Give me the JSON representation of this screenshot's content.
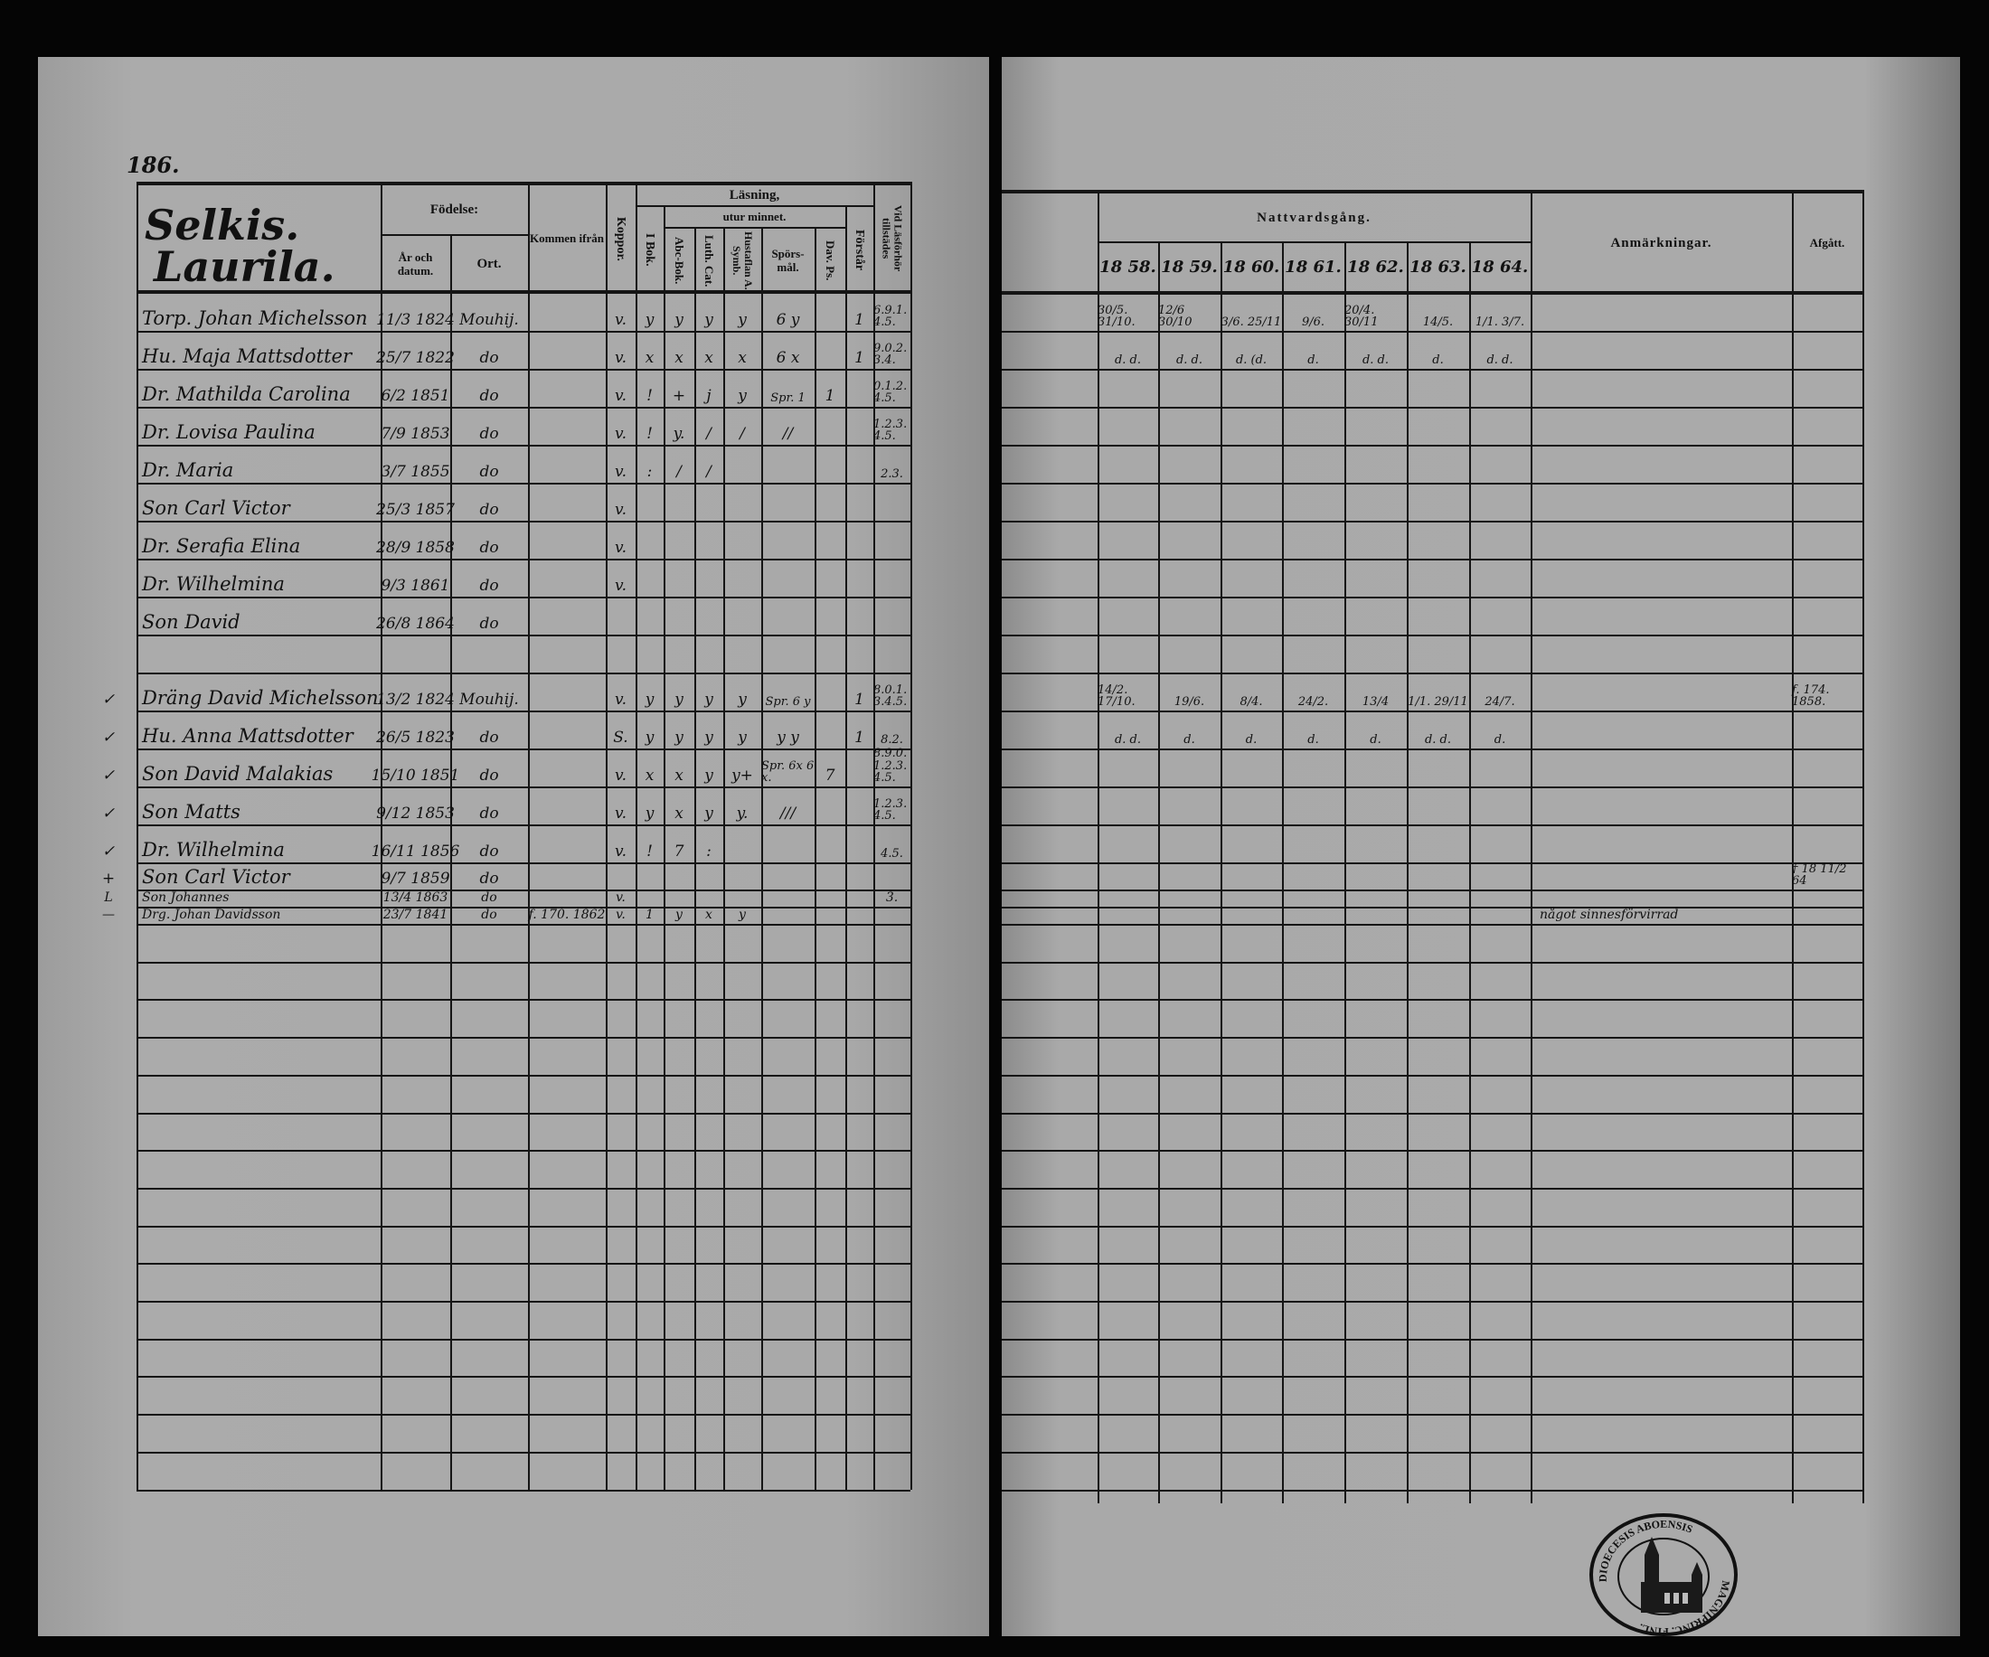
{
  "left_page": {
    "page_number": "186.",
    "farm_name_line1": "Selkis.",
    "farm_name_line2": "Laurila.",
    "headers": {
      "fodelse": "Födelse:",
      "ar_och_datum": "År och datum.",
      "ort": "Ort.",
      "kommen_ifran": "Kommen ifrån",
      "koppor": "Koppor.",
      "lasning": "Läsning,",
      "utur_minnet": "utur minnet.",
      "i_bok": "I Bok.",
      "abc_bok": "Abc-Bok.",
      "luth_cat": "Luth. Cat.",
      "hustaflan": "Hustaflan A. Symb.",
      "sporsmal": "Spörs- mål.",
      "dav_ps": "Dav. Ps.",
      "forstar": "Förstår",
      "vid_lasforhor": "Vid Läsförhör tillstädes"
    },
    "rows": [
      {
        "margin": "",
        "name": "Torp. Johan Michelsson",
        "birth_date": "11/3 1824",
        "birth_place": "Mouhij.",
        "from": "",
        "koppor": "v.",
        "i_bok": "y",
        "abc_bok": "y",
        "luth_cat": "y",
        "hustaflan": "y",
        "sporsmal": "6 y",
        "dav_ps": "",
        "forstar": "1",
        "lasforhor": "6.9.1. 4.5."
      },
      {
        "margin": "",
        "name": "Hu. Maja Mattsdotter",
        "birth_date": "25/7 1822",
        "birth_place": "do",
        "from": "",
        "koppor": "v.",
        "i_bok": "x",
        "abc_bok": "x",
        "luth_cat": "x",
        "hustaflan": "x",
        "sporsmal": "6 x",
        "dav_ps": "",
        "forstar": "1",
        "lasforhor": "9.0.2. 3.4."
      },
      {
        "margin": "",
        "name": "Dr. Mathilda Carolina",
        "birth_date": "6/2 1851",
        "birth_place": "do",
        "from": "",
        "koppor": "v.",
        "i_bok": "!",
        "abc_bok": "+",
        "luth_cat": "j",
        "hustaflan": "y",
        "sporsmal": "Spr. 1",
        "dav_ps": "1",
        "forstar": "",
        "lasforhor": "0.1.2. 4.5."
      },
      {
        "margin": "",
        "name": "Dr. Lovisa Paulina",
        "birth_date": "7/9 1853",
        "birth_place": "do",
        "from": "",
        "koppor": "v.",
        "i_bok": "!",
        "abc_bok": "y.",
        "luth_cat": "/",
        "hustaflan": "/",
        "sporsmal": "//",
        "dav_ps": "",
        "forstar": "",
        "lasforhor": "1.2.3. 4.5."
      },
      {
        "margin": "",
        "name": "Dr. Maria",
        "birth_date": "3/7 1855",
        "birth_place": "do",
        "from": "",
        "koppor": "v.",
        "i_bok": ":",
        "abc_bok": "/",
        "luth_cat": "/",
        "hustaflan": "",
        "sporsmal": "",
        "dav_ps": "",
        "forstar": "",
        "lasforhor": "2.3."
      },
      {
        "margin": "",
        "name": "Son Carl Victor",
        "birth_date": "25/3 1857",
        "birth_place": "do",
        "from": "",
        "koppor": "v.",
        "i_bok": "",
        "abc_bok": "",
        "luth_cat": "",
        "hustaflan": "",
        "sporsmal": "",
        "dav_ps": "",
        "forstar": "",
        "lasforhor": ""
      },
      {
        "margin": "",
        "name": "Dr. Serafia Elina",
        "birth_date": "28/9 1858",
        "birth_place": "do",
        "from": "",
        "koppor": "v.",
        "i_bok": "",
        "abc_bok": "",
        "luth_cat": "",
        "hustaflan": "",
        "sporsmal": "",
        "dav_ps": "",
        "forstar": "",
        "lasforhor": ""
      },
      {
        "margin": "",
        "name": "Dr. Wilhelmina",
        "birth_date": "9/3 1861",
        "birth_place": "do",
        "from": "",
        "koppor": "v.",
        "i_bok": "",
        "abc_bok": "",
        "luth_cat": "",
        "hustaflan": "",
        "sporsmal": "",
        "dav_ps": "",
        "forstar": "",
        "lasforhor": ""
      },
      {
        "margin": "",
        "name": "Son David",
        "birth_date": "26/8 1864",
        "birth_place": "do",
        "from": "",
        "koppor": "",
        "i_bok": "",
        "abc_bok": "",
        "luth_cat": "",
        "hustaflan": "",
        "sporsmal": "",
        "dav_ps": "",
        "forstar": "",
        "lasforhor": ""
      },
      {
        "margin": "",
        "name": "",
        "birth_date": "",
        "birth_place": "",
        "from": "",
        "koppor": "",
        "i_bok": "",
        "abc_bok": "",
        "luth_cat": "",
        "hustaflan": "",
        "sporsmal": "",
        "dav_ps": "",
        "forstar": "",
        "lasforhor": ""
      },
      {
        "margin": "✓",
        "name": "Dräng David Michelsson",
        "birth_date": "13/2 1824",
        "birth_place": "Mouhij.",
        "from": "",
        "koppor": "v.",
        "i_bok": "y",
        "abc_bok": "y",
        "luth_cat": "y",
        "hustaflan": "y",
        "sporsmal": "Spr. 6 y",
        "dav_ps": "",
        "forstar": "1",
        "lasforhor": "8.0.1. 3.4.5."
      },
      {
        "margin": "✓",
        "name": "Hu. Anna Mattsdotter",
        "birth_date": "26/5 1823",
        "birth_place": "do",
        "from": "",
        "koppor": "S.",
        "i_bok": "y",
        "abc_bok": "y",
        "luth_cat": "y",
        "hustaflan": "y",
        "sporsmal": "y y",
        "dav_ps": "",
        "forstar": "1",
        "lasforhor": "8.2."
      },
      {
        "margin": "✓",
        "name": "Son David Malakias",
        "birth_date": "15/10 1851",
        "birth_place": "do",
        "from": "",
        "koppor": "v.",
        "i_bok": "x",
        "abc_bok": "x",
        "luth_cat": "y",
        "hustaflan": "y+",
        "sporsmal": "Spr. 6x 6 x.",
        "dav_ps": "7",
        "forstar": "",
        "lasforhor": "8.9.0. 1.2.3. 4.5."
      },
      {
        "margin": "✓",
        "name": "Son Matts",
        "birth_date": "9/12 1853",
        "birth_place": "do",
        "from": "",
        "koppor": "v.",
        "i_bok": "y",
        "abc_bok": "x",
        "luth_cat": "y",
        "hustaflan": "y.",
        "sporsmal": "///",
        "dav_ps": "",
        "forstar": "",
        "lasforhor": "1.2.3. 4.5."
      },
      {
        "margin": "✓",
        "name": "Dr. Wilhelmina",
        "birth_date": "16/11 1856",
        "birth_place": "do",
        "from": "",
        "koppor": "v.",
        "i_bok": "!",
        "abc_bok": "7",
        "luth_cat": ":",
        "hustaflan": "",
        "sporsmal": "",
        "dav_ps": "",
        "forstar": "",
        "lasforhor": "4.5."
      },
      {
        "margin": "+",
        "name": "Son Carl Victor",
        "birth_date": "9/7 1859",
        "birth_place": "do",
        "from": "",
        "koppor": "",
        "i_bok": "",
        "abc_bok": "",
        "luth_cat": "",
        "hustaflan": "",
        "sporsmal": "",
        "dav_ps": "",
        "forstar": "",
        "lasforhor": ""
      },
      {
        "margin": "L",
        "name": "Son Johannes",
        "birth_date": "13/4 1863",
        "birth_place": "do",
        "from": "",
        "koppor": "v.",
        "i_bok": "",
        "abc_bok": "",
        "luth_cat": "",
        "hustaflan": "",
        "sporsmal": "",
        "dav_ps": "",
        "forstar": "",
        "lasforhor": "3."
      },
      {
        "margin": "—",
        "name": "Drg. Johan Davidsson",
        "birth_date": "23/7 1841",
        "birth_place": "do",
        "from": "f. 170. 1862",
        "koppor": "v.",
        "i_bok": "1",
        "abc_bok": "y",
        "luth_cat": "x",
        "hustaflan": "y",
        "sporsmal": "",
        "dav_ps": "",
        "forstar": "",
        "lasforhor": ""
      }
    ]
  },
  "right_page": {
    "headers": {
      "nattvardsgang": "Nattvardsgång.",
      "years": [
        "18 58.",
        "18 59.",
        "18 60.",
        "18 61.",
        "18 62.",
        "18 63.",
        "18 64."
      ],
      "anmarkningar": "Anmärkningar.",
      "afgatt": "Afgått."
    },
    "rows": [
      {
        "communion": [
          "30/5. 31/10.",
          "12/6 30/10",
          "3/6. 25/11",
          "9/6.",
          "20/4. 30/11",
          "14/5.",
          "1/1. 3/7."
        ],
        "remarks": "",
        "afgatt": ""
      },
      {
        "communion": [
          "d. d.",
          "d. d.",
          "d. (d.",
          "d.",
          "d. d.",
          "d.",
          "d. d."
        ],
        "remarks": "",
        "afgatt": ""
      },
      {
        "communion": [
          "",
          "",
          "",
          "",
          "",
          "",
          ""
        ],
        "remarks": "",
        "afgatt": ""
      },
      {
        "communion": [
          "",
          "",
          "",
          "",
          "",
          "",
          ""
        ],
        "remarks": "",
        "afgatt": ""
      },
      {
        "communion": [
          "",
          "",
          "",
          "",
          "",
          "",
          ""
        ],
        "remarks": "",
        "afgatt": ""
      },
      {
        "communion": [
          "",
          "",
          "",
          "",
          "",
          "",
          ""
        ],
        "remarks": "",
        "afgatt": ""
      },
      {
        "communion": [
          "",
          "",
          "",
          "",
          "",
          "",
          ""
        ],
        "remarks": "",
        "afgatt": ""
      },
      {
        "communion": [
          "",
          "",
          "",
          "",
          "",
          "",
          ""
        ],
        "remarks": "",
        "afgatt": ""
      },
      {
        "communion": [
          "",
          "",
          "",
          "",
          "",
          "",
          ""
        ],
        "remarks": "",
        "afgatt": ""
      },
      {
        "communion": [
          "",
          "",
          "",
          "",
          "",
          "",
          ""
        ],
        "remarks": "",
        "afgatt": ""
      },
      {
        "communion": [
          "14/2. 17/10.",
          "19/6.",
          "8/4.",
          "24/2.",
          "13/4",
          "1/1. 29/11",
          "24/7."
        ],
        "remarks": "",
        "afgatt": "f. 174. 1858."
      },
      {
        "communion": [
          "d. d.",
          "d.",
          "d.",
          "d.",
          "d.",
          "d. d.",
          "d."
        ],
        "remarks": "",
        "afgatt": ""
      },
      {
        "communion": [
          "",
          "",
          "",
          "",
          "",
          "",
          ""
        ],
        "remarks": "",
        "afgatt": ""
      },
      {
        "communion": [
          "",
          "",
          "",
          "",
          "",
          "",
          ""
        ],
        "remarks": "",
        "afgatt": ""
      },
      {
        "communion": [
          "",
          "",
          "",
          "",
          "",
          "",
          ""
        ],
        "remarks": "",
        "afgatt": ""
      },
      {
        "communion": [
          "",
          "",
          "",
          "",
          "",
          "",
          ""
        ],
        "remarks": "",
        "afgatt": "† 18 11/2 64"
      },
      {
        "communion": [
          "",
          "",
          "",
          "",
          "",
          "",
          ""
        ],
        "remarks": "",
        "afgatt": ""
      },
      {
        "communion": [
          "",
          "",
          "",
          "",
          "",
          "",
          ""
        ],
        "remarks": "något sinnesförvirrad",
        "afgatt": ""
      }
    ]
  },
  "stamp": {
    "text_top": "DIOECESIS ABOENSIS",
    "text_bottom": "MAGNIPRINC. FINL."
  }
}
